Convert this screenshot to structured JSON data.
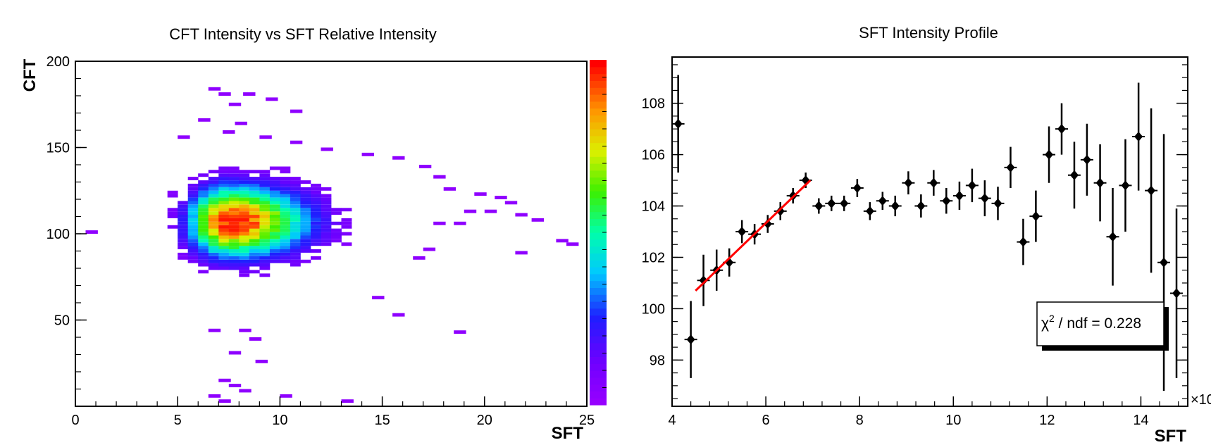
{
  "chart_data": [
    {
      "type": "heatmap",
      "title": "CFT Intensity vs SFT Relative Intensity",
      "xlabel": "SFT",
      "ylabel": "CFT",
      "xlim": [
        0,
        25
      ],
      "ylim": [
        0,
        200
      ],
      "x_ticks": [
        "0",
        "5",
        "10",
        "15",
        "20",
        "25"
      ],
      "y_ticks": [
        "50",
        "100",
        "150",
        "200"
      ],
      "colorbar": "rainbow (violet low → red high)",
      "distribution": {
        "peak_x": 7.5,
        "peak_y": 107,
        "sigma_x": 1.6,
        "sigma_y": 14,
        "x_range": [
          4,
          17
        ],
        "y_range": [
          55,
          145
        ]
      },
      "outliers": [
        [
          6.5,
          183
        ],
        [
          7.0,
          180
        ],
        [
          7.5,
          174
        ],
        [
          8.2,
          180
        ],
        [
          9.3,
          177
        ],
        [
          10.5,
          170
        ],
        [
          6.0,
          165
        ],
        [
          7.8,
          163
        ],
        [
          5.0,
          155
        ],
        [
          7.2,
          158
        ],
        [
          9.0,
          155
        ],
        [
          10.5,
          152
        ],
        [
          12.0,
          148
        ],
        [
          14.0,
          145
        ],
        [
          15.5,
          143
        ],
        [
          16.8,
          138
        ],
        [
          17.5,
          132
        ],
        [
          18.0,
          125
        ],
        [
          19.5,
          122
        ],
        [
          20.5,
          120
        ],
        [
          21.0,
          117
        ],
        [
          19.0,
          112
        ],
        [
          20.0,
          112
        ],
        [
          21.5,
          110
        ],
        [
          22.3,
          107
        ],
        [
          17.5,
          105
        ],
        [
          18.5,
          105
        ],
        [
          23.5,
          95
        ],
        [
          24.0,
          93
        ],
        [
          0.5,
          100
        ],
        [
          21.5,
          88
        ],
        [
          16.5,
          85
        ],
        [
          17.0,
          90
        ],
        [
          14.5,
          62
        ],
        [
          15.5,
          52
        ],
        [
          18.5,
          42
        ],
        [
          6.5,
          43
        ],
        [
          8.0,
          43
        ],
        [
          8.5,
          38
        ],
        [
          7.5,
          30
        ],
        [
          8.8,
          25
        ],
        [
          7.0,
          14
        ],
        [
          7.5,
          11
        ],
        [
          6.5,
          5
        ],
        [
          8.0,
          8
        ],
        [
          10.0,
          5
        ],
        [
          13.0,
          2
        ],
        [
          7.0,
          2
        ]
      ]
    },
    {
      "type": "scatter",
      "title": "SFT Intensity Profile",
      "xlabel": "SFT",
      "x_multiplier_label": "×10",
      "xlim": [
        4,
        15
      ],
      "ylim": [
        96.2,
        109.8
      ],
      "x_ticks": [
        "4",
        "6",
        "8",
        "10",
        "12",
        "14"
      ],
      "y_ticks": [
        "98",
        "100",
        "102",
        "104",
        "106",
        "108"
      ],
      "points": [
        {
          "x": 4.13,
          "y": 107.2,
          "err": 1.9
        },
        {
          "x": 4.4,
          "y": 98.8,
          "err": 1.5
        },
        {
          "x": 4.67,
          "y": 101.1,
          "err": 1.0
        },
        {
          "x": 4.95,
          "y": 101.5,
          "err": 0.8
        },
        {
          "x": 5.22,
          "y": 101.8,
          "err": 0.55
        },
        {
          "x": 5.49,
          "y": 103.0,
          "err": 0.45
        },
        {
          "x": 5.76,
          "y": 102.9,
          "err": 0.4
        },
        {
          "x": 6.04,
          "y": 103.3,
          "err": 0.35
        },
        {
          "x": 6.31,
          "y": 103.8,
          "err": 0.35
        },
        {
          "x": 6.58,
          "y": 104.4,
          "err": 0.3
        },
        {
          "x": 6.85,
          "y": 105.0,
          "err": 0.3
        },
        {
          "x": 7.13,
          "y": 104.0,
          "err": 0.3
        },
        {
          "x": 7.4,
          "y": 104.1,
          "err": 0.3
        },
        {
          "x": 7.67,
          "y": 104.1,
          "err": 0.3
        },
        {
          "x": 7.95,
          "y": 104.7,
          "err": 0.35
        },
        {
          "x": 8.22,
          "y": 103.8,
          "err": 0.35
        },
        {
          "x": 8.49,
          "y": 104.2,
          "err": 0.35
        },
        {
          "x": 8.76,
          "y": 104.0,
          "err": 0.4
        },
        {
          "x": 9.04,
          "y": 104.9,
          "err": 0.45
        },
        {
          "x": 9.31,
          "y": 104.0,
          "err": 0.45
        },
        {
          "x": 9.58,
          "y": 104.9,
          "err": 0.5
        },
        {
          "x": 9.85,
          "y": 104.2,
          "err": 0.5
        },
        {
          "x": 10.13,
          "y": 104.4,
          "err": 0.55
        },
        {
          "x": 10.4,
          "y": 104.8,
          "err": 0.65
        },
        {
          "x": 10.67,
          "y": 104.3,
          "err": 0.7
        },
        {
          "x": 10.95,
          "y": 104.1,
          "err": 0.65
        },
        {
          "x": 11.22,
          "y": 105.5,
          "err": 0.8
        },
        {
          "x": 11.49,
          "y": 102.6,
          "err": 0.9
        },
        {
          "x": 11.76,
          "y": 103.6,
          "err": 1.0
        },
        {
          "x": 12.04,
          "y": 106.0,
          "err": 1.1
        },
        {
          "x": 12.31,
          "y": 107.0,
          "err": 1.0
        },
        {
          "x": 12.58,
          "y": 105.2,
          "err": 1.3
        },
        {
          "x": 12.85,
          "y": 105.8,
          "err": 1.4
        },
        {
          "x": 13.13,
          "y": 104.9,
          "err": 1.5
        },
        {
          "x": 13.4,
          "y": 102.8,
          "err": 1.9
        },
        {
          "x": 13.67,
          "y": 104.8,
          "err": 1.8
        },
        {
          "x": 13.95,
          "y": 106.7,
          "err": 2.1
        },
        {
          "x": 14.22,
          "y": 104.6,
          "err": 3.2
        },
        {
          "x": 14.49,
          "y": 101.8,
          "err": 5.0
        },
        {
          "x": 14.76,
          "y": 100.6,
          "err": 3.3
        }
      ],
      "fit_line": {
        "x0": 4.5,
        "y0": 100.7,
        "x1": 6.95,
        "y1": 105.0,
        "color": "#ff0000"
      },
      "stat_box": {
        "chi2_symbol": "χ",
        "exponent": "2",
        "text": " / ndf = 0.228"
      }
    }
  ]
}
